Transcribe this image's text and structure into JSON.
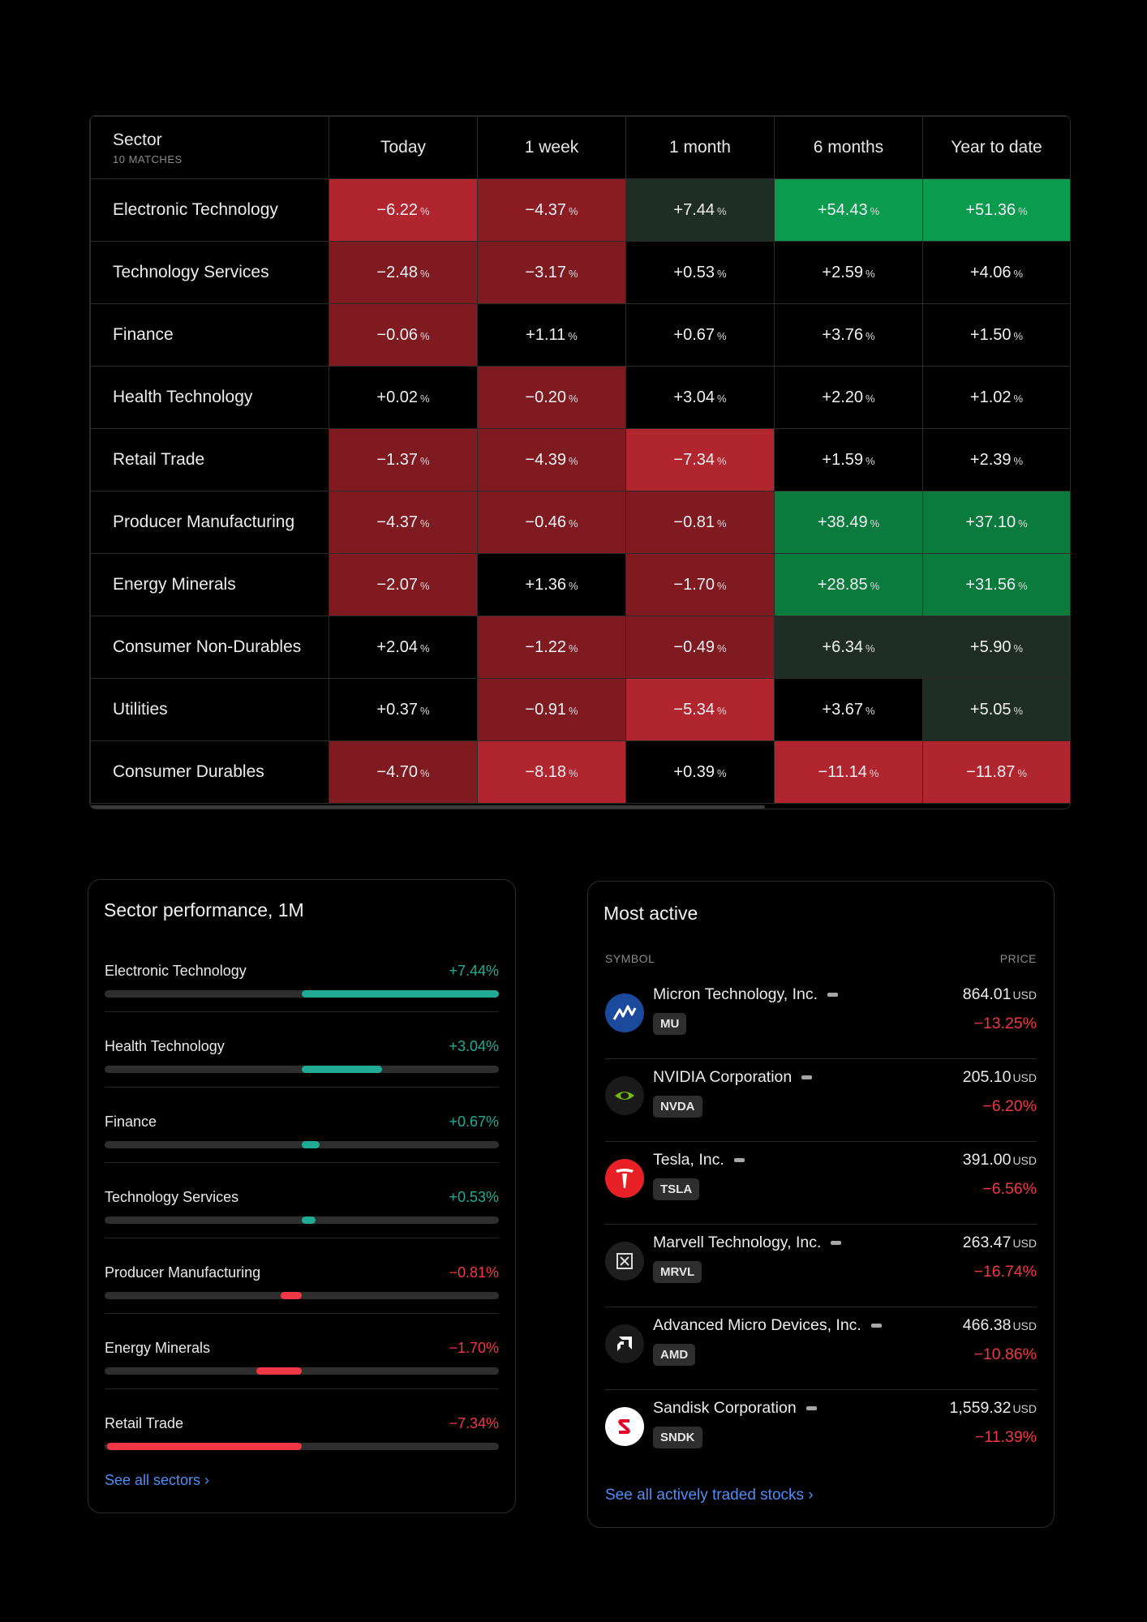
{
  "heatmap": {
    "sector_header": "Sector",
    "matches": "10 MATCHES",
    "columns": [
      "Today",
      "1 week",
      "1 month",
      "6 months",
      "Year to date"
    ],
    "percent_unit": "%",
    "rows": [
      {
        "sector": "Electronic Technology",
        "values": [
          "−6.22",
          "−4.37",
          "+7.44",
          "+54.43",
          "+51.36"
        ],
        "bg": [
          "#b0252e",
          "#8c1c23",
          "#1f2e25",
          "#0a9b4f",
          "#0a9b4f"
        ]
      },
      {
        "sector": "Technology Services",
        "values": [
          "−2.48",
          "−3.17",
          "+0.53",
          "+2.59",
          "+4.06"
        ],
        "bg": [
          "#7e1a20",
          "#7e1a20",
          "#000000",
          "#000000",
          "#000000"
        ]
      },
      {
        "sector": "Finance",
        "values": [
          "−0.06",
          "+1.11",
          "+0.67",
          "+3.76",
          "+1.50"
        ],
        "bg": [
          "#7e1a20",
          "#000000",
          "#000000",
          "#000000",
          "#000000"
        ]
      },
      {
        "sector": "Health Technology",
        "values": [
          "+0.02",
          "−0.20",
          "+3.04",
          "+2.20",
          "+1.02"
        ],
        "bg": [
          "#000000",
          "#7e1a20",
          "#000000",
          "#000000",
          "#000000"
        ]
      },
      {
        "sector": "Retail Trade",
        "values": [
          "−1.37",
          "−4.39",
          "−7.34",
          "+1.59",
          "+2.39"
        ],
        "bg": [
          "#7e1a20",
          "#7e1a20",
          "#b0252e",
          "#000000",
          "#000000"
        ]
      },
      {
        "sector": "Producer Manufacturing",
        "values": [
          "−4.37",
          "−0.46",
          "−0.81",
          "+38.49",
          "+37.10"
        ],
        "bg": [
          "#7e1a20",
          "#7e1a20",
          "#7e1a20",
          "#0b7a3d",
          "#0b7a3d"
        ]
      },
      {
        "sector": "Energy Minerals",
        "values": [
          "−2.07",
          "+1.36",
          "−1.70",
          "+28.85",
          "+31.56"
        ],
        "bg": [
          "#7e1a20",
          "#000000",
          "#7e1a20",
          "#0b7a3d",
          "#0b7a3d"
        ]
      },
      {
        "sector": "Consumer Non-Durables",
        "values": [
          "+2.04",
          "−1.22",
          "−0.49",
          "+6.34",
          "+5.90"
        ],
        "bg": [
          "#000000",
          "#7e1a20",
          "#7e1a20",
          "#1f2e25",
          "#1f2e25"
        ]
      },
      {
        "sector": "Utilities",
        "values": [
          "+0.37",
          "−0.91",
          "−5.34",
          "+3.67",
          "+5.05"
        ],
        "bg": [
          "#000000",
          "#7e1a20",
          "#b0252e",
          "#000000",
          "#1f2e25"
        ]
      },
      {
        "sector": "Consumer Durables",
        "values": [
          "−4.70",
          "−8.18",
          "+0.39",
          "−11.14",
          "−11.87"
        ],
        "bg": [
          "#7e1a20",
          "#b0252e",
          "#000000",
          "#b0252e",
          "#b0252e"
        ]
      }
    ]
  },
  "sector_performance": {
    "title": "Sector performance, 1M",
    "items": [
      {
        "name": "Electronic Technology",
        "value": "+7.44%",
        "change": 7.44
      },
      {
        "name": "Health Technology",
        "value": "+3.04%",
        "change": 3.04
      },
      {
        "name": "Finance",
        "value": "+0.67%",
        "change": 0.67
      },
      {
        "name": "Technology Services",
        "value": "+0.53%",
        "change": 0.53
      },
      {
        "name": "Producer Manufacturing",
        "value": "−0.81%",
        "change": -0.81
      },
      {
        "name": "Energy Minerals",
        "value": "−1.70%",
        "change": -1.7
      },
      {
        "name": "Retail Trade",
        "value": "−7.34%",
        "change": -7.34
      }
    ],
    "link": "See all sectors ›",
    "positive_color": "#22ab94",
    "negative_color": "#f23645"
  },
  "most_active": {
    "title": "Most active",
    "symbol_header": "SYMBOL",
    "price_header": "PRICE",
    "currency": "USD",
    "stocks": [
      {
        "name": "Micron Technology, Inc.",
        "ticker": "MU",
        "price": "864.01",
        "change": "−13.25%",
        "logo": "micron-logo"
      },
      {
        "name": "NVIDIA Corporation",
        "ticker": "NVDA",
        "price": "205.10",
        "change": "−6.20%",
        "logo": "nvidia-logo"
      },
      {
        "name": "Tesla, Inc.",
        "ticker": "TSLA",
        "price": "391.00",
        "change": "−6.56%",
        "logo": "tesla-logo"
      },
      {
        "name": "Marvell Technology, Inc.",
        "ticker": "MRVL",
        "price": "263.47",
        "change": "−16.74%",
        "logo": "marvell-logo"
      },
      {
        "name": "Advanced Micro Devices, Inc.",
        "ticker": "AMD",
        "price": "466.38",
        "change": "−10.86%",
        "logo": "amd-logo"
      },
      {
        "name": "Sandisk Corporation",
        "ticker": "SNDK",
        "price": "1,559.32",
        "change": "−11.39%",
        "logo": "sandisk-logo"
      }
    ],
    "link": "See all actively traded stocks ›"
  }
}
